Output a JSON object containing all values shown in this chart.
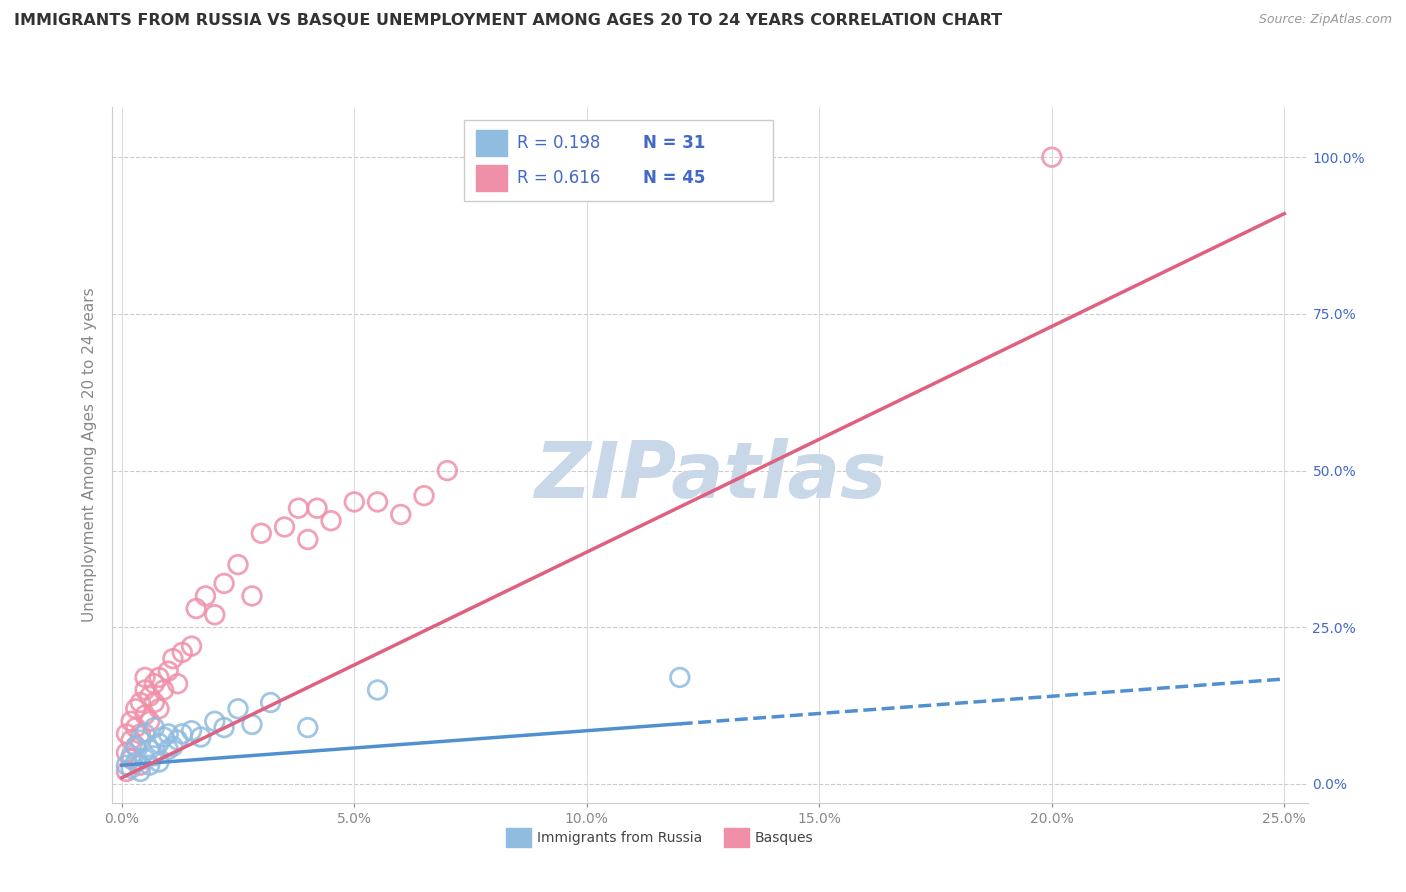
{
  "title": "IMMIGRANTS FROM RUSSIA VS BASQUE UNEMPLOYMENT AMONG AGES 20 TO 24 YEARS CORRELATION CHART",
  "source": "Source: ZipAtlas.com",
  "ylabel": "Unemployment Among Ages 20 to 24 years",
  "watermark": "ZIPatlas",
  "legend_entries": [
    {
      "label": "Immigrants from Russia",
      "color": "#a8c8e8",
      "R": "0.198",
      "N": "31"
    },
    {
      "label": "Basques",
      "color": "#f4b0c0",
      "R": "0.616",
      "N": "45"
    }
  ],
  "blue_scatter_x": [
    0.001,
    0.002,
    0.002,
    0.003,
    0.003,
    0.004,
    0.004,
    0.005,
    0.005,
    0.006,
    0.006,
    0.007,
    0.007,
    0.008,
    0.008,
    0.009,
    0.01,
    0.01,
    0.011,
    0.012,
    0.013,
    0.015,
    0.017,
    0.02,
    0.022,
    0.025,
    0.028,
    0.032,
    0.04,
    0.055,
    0.12
  ],
  "blue_scatter_y": [
    0.03,
    0.025,
    0.045,
    0.035,
    0.06,
    0.02,
    0.07,
    0.04,
    0.08,
    0.055,
    0.03,
    0.045,
    0.09,
    0.035,
    0.065,
    0.075,
    0.055,
    0.08,
    0.06,
    0.07,
    0.08,
    0.085,
    0.075,
    0.1,
    0.09,
    0.12,
    0.095,
    0.13,
    0.09,
    0.15,
    0.17
  ],
  "pink_scatter_x": [
    0.001,
    0.001,
    0.001,
    0.002,
    0.002,
    0.002,
    0.003,
    0.003,
    0.003,
    0.004,
    0.004,
    0.004,
    0.005,
    0.005,
    0.005,
    0.006,
    0.006,
    0.007,
    0.007,
    0.008,
    0.008,
    0.009,
    0.01,
    0.011,
    0.012,
    0.013,
    0.015,
    0.016,
    0.018,
    0.02,
    0.022,
    0.025,
    0.028,
    0.03,
    0.035,
    0.038,
    0.04,
    0.042,
    0.045,
    0.05,
    0.055,
    0.06,
    0.065,
    0.07,
    0.2
  ],
  "pink_scatter_y": [
    0.02,
    0.05,
    0.08,
    0.04,
    0.07,
    0.1,
    0.06,
    0.09,
    0.12,
    0.03,
    0.08,
    0.13,
    0.11,
    0.15,
    0.17,
    0.1,
    0.14,
    0.13,
    0.16,
    0.12,
    0.17,
    0.15,
    0.18,
    0.2,
    0.16,
    0.21,
    0.22,
    0.28,
    0.3,
    0.27,
    0.32,
    0.35,
    0.3,
    0.4,
    0.41,
    0.44,
    0.39,
    0.44,
    0.42,
    0.45,
    0.45,
    0.43,
    0.46,
    0.5,
    1.0
  ],
  "xlim": [
    -0.002,
    0.255
  ],
  "ylim": [
    -0.03,
    1.08
  ],
  "xticks": [
    0.0,
    0.05,
    0.1,
    0.15,
    0.2,
    0.25
  ],
  "xtick_labels": [
    "0.0%",
    "5.0%",
    "10.0%",
    "15.0%",
    "20.0%",
    "25.0%"
  ],
  "yticks": [
    0.0,
    0.25,
    0.5,
    0.75,
    1.0
  ],
  "ytick_right_labels": [
    "0.0%",
    "25.0%",
    "50.0%",
    "75.0%",
    "100.0%"
  ],
  "title_color": "#333333",
  "axis_color": "#888888",
  "grid_color": "#cccccc",
  "blue_color": "#90bce0",
  "blue_line_color": "#5090d0",
  "pink_color": "#f090a8",
  "pink_line_color": "#e06080",
  "label_color": "#4169c8",
  "watermark_color": "#c8d8e8",
  "blue_line_slope": 0.55,
  "blue_line_intercept": 0.03,
  "pink_line_slope": 3.6,
  "pink_line_intercept": 0.01
}
